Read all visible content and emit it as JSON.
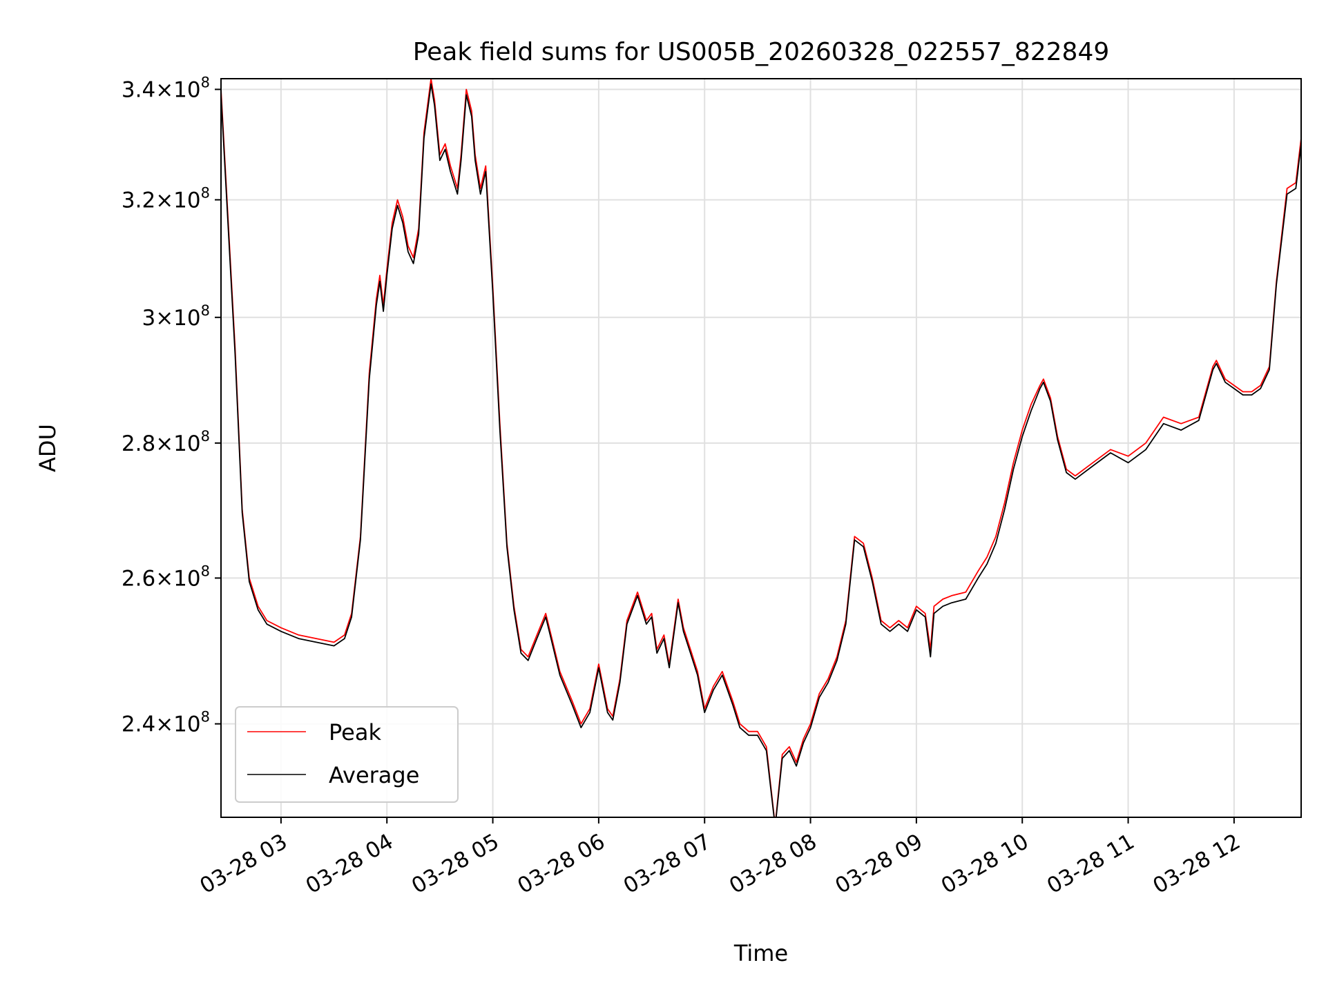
{
  "chart_data": {
    "type": "line",
    "title": "Peak field sums for US005B_20260328_022557_822849",
    "xlabel": "Time",
    "ylabel": "ADU",
    "x_type": "datetime",
    "xlim": [
      "2026-03-28 02:26",
      "2026-03-28 12:38"
    ],
    "ylim": [
      228000000,
      342000000
    ],
    "y_scale": "log",
    "grid": true,
    "legend": "lower left",
    "x_ticks": [
      {
        "value": "2026-03-28 03:00",
        "label": "03-28 03"
      },
      {
        "value": "2026-03-28 04:00",
        "label": "03-28 04"
      },
      {
        "value": "2026-03-28 05:00",
        "label": "03-28 05"
      },
      {
        "value": "2026-03-28 06:00",
        "label": "03-28 06"
      },
      {
        "value": "2026-03-28 07:00",
        "label": "03-28 07"
      },
      {
        "value": "2026-03-28 08:00",
        "label": "03-28 08"
      },
      {
        "value": "2026-03-28 09:00",
        "label": "03-28 09"
      },
      {
        "value": "2026-03-28 10:00",
        "label": "03-28 10"
      },
      {
        "value": "2026-03-28 11:00",
        "label": "03-28 11"
      },
      {
        "value": "2026-03-28 12:00",
        "label": "03-28 12"
      }
    ],
    "y_ticks": [
      {
        "value": 240000000,
        "mantissa": "2.4"
      },
      {
        "value": 260000000,
        "mantissa": "2.6"
      },
      {
        "value": 280000000,
        "mantissa": "2.8"
      },
      {
        "value": 300000000,
        "mantissa": "3"
      },
      {
        "value": 320000000,
        "mantissa": "3.2"
      },
      {
        "value": 340000000,
        "mantissa": "3.4"
      }
    ],
    "y_tick_base": "10",
    "y_tick_exponent": "8",
    "series": [
      {
        "name": "Peak",
        "color": "#ff0000",
        "x": [
          "2026-03-28 02:26",
          "2026-03-28 02:34",
          "2026-03-28 02:38",
          "2026-03-28 02:42",
          "2026-03-28 02:47",
          "2026-03-28 02:52",
          "2026-03-28 03:00",
          "2026-03-28 03:10",
          "2026-03-28 03:20",
          "2026-03-28 03:30",
          "2026-03-28 03:36",
          "2026-03-28 03:40",
          "2026-03-28 03:45",
          "2026-03-28 03:50",
          "2026-03-28 03:54",
          "2026-03-28 03:56",
          "2026-03-28 03:58",
          "2026-03-28 04:00",
          "2026-03-28 04:03",
          "2026-03-28 04:06",
          "2026-03-28 04:09",
          "2026-03-28 04:12",
          "2026-03-28 04:15",
          "2026-03-28 04:18",
          "2026-03-28 04:21",
          "2026-03-28 04:25",
          "2026-03-28 04:27",
          "2026-03-28 04:30",
          "2026-03-28 04:33",
          "2026-03-28 04:36",
          "2026-03-28 04:40",
          "2026-03-28 04:42",
          "2026-03-28 04:45",
          "2026-03-28 04:48",
          "2026-03-28 04:50",
          "2026-03-28 04:53",
          "2026-03-28 04:56",
          "2026-03-28 05:00",
          "2026-03-28 05:04",
          "2026-03-28 05:08",
          "2026-03-28 05:12",
          "2026-03-28 05:16",
          "2026-03-28 05:20",
          "2026-03-28 05:25",
          "2026-03-28 05:30",
          "2026-03-28 05:33",
          "2026-03-28 05:38",
          "2026-03-28 05:45",
          "2026-03-28 05:50",
          "2026-03-28 05:55",
          "2026-03-28 06:00",
          "2026-03-28 06:05",
          "2026-03-28 06:08",
          "2026-03-28 06:12",
          "2026-03-28 06:16",
          "2026-03-28 06:22",
          "2026-03-28 06:27",
          "2026-03-28 06:30",
          "2026-03-28 06:33",
          "2026-03-28 06:37",
          "2026-03-28 06:40",
          "2026-03-28 06:45",
          "2026-03-28 06:48",
          "2026-03-28 06:52",
          "2026-03-28 06:56",
          "2026-03-28 07:00",
          "2026-03-28 07:05",
          "2026-03-28 07:10",
          "2026-03-28 07:16",
          "2026-03-28 07:20",
          "2026-03-28 07:25",
          "2026-03-28 07:30",
          "2026-03-28 07:35",
          "2026-03-28 07:40",
          "2026-03-28 07:44",
          "2026-03-28 07:48",
          "2026-03-28 07:52",
          "2026-03-28 07:56",
          "2026-03-28 08:00",
          "2026-03-28 08:05",
          "2026-03-28 08:10",
          "2026-03-28 08:15",
          "2026-03-28 08:20",
          "2026-03-28 08:25",
          "2026-03-28 08:30",
          "2026-03-28 08:35",
          "2026-03-28 08:40",
          "2026-03-28 08:45",
          "2026-03-28 08:50",
          "2026-03-28 08:55",
          "2026-03-28 09:00",
          "2026-03-28 09:05",
          "2026-03-28 09:08",
          "2026-03-28 09:10",
          "2026-03-28 09:15",
          "2026-03-28 09:20",
          "2026-03-28 09:28",
          "2026-03-28 09:35",
          "2026-03-28 09:40",
          "2026-03-28 09:45",
          "2026-03-28 09:50",
          "2026-03-28 09:55",
          "2026-03-28 10:00",
          "2026-03-28 10:05",
          "2026-03-28 10:10",
          "2026-03-28 10:12",
          "2026-03-28 10:16",
          "2026-03-28 10:20",
          "2026-03-28 10:25",
          "2026-03-28 10:30",
          "2026-03-28 10:40",
          "2026-03-28 10:50",
          "2026-03-28 11:00",
          "2026-03-28 11:10",
          "2026-03-28 11:20",
          "2026-03-28 11:30",
          "2026-03-28 11:40",
          "2026-03-28 11:48",
          "2026-03-28 11:50",
          "2026-03-28 11:55",
          "2026-03-28 12:00",
          "2026-03-28 12:05",
          "2026-03-28 12:10",
          "2026-03-28 12:15",
          "2026-03-28 12:20",
          "2026-03-28 12:24",
          "2026-03-28 12:30",
          "2026-03-28 12:35",
          "2026-03-28 12:38"
        ],
        "values": [
          340000000,
          295000000,
          270000000,
          260000000,
          256000000,
          254000000,
          253000000,
          252000000,
          251500000,
          251000000,
          252000000,
          255000000,
          266000000,
          291000000,
          303000000,
          307000000,
          302000000,
          308000000,
          316000000,
          320000000,
          317000000,
          312000000,
          310000000,
          315000000,
          332000000,
          342000000,
          338000000,
          328000000,
          330000000,
          326000000,
          322000000,
          328000000,
          340000000,
          336000000,
          328000000,
          322000000,
          326000000,
          305000000,
          283000000,
          265000000,
          256000000,
          250000000,
          249000000,
          252000000,
          255000000,
          252000000,
          247000000,
          243000000,
          240000000,
          242000000,
          248000000,
          242000000,
          241000000,
          246000000,
          254000000,
          258000000,
          254000000,
          255000000,
          250000000,
          252000000,
          248000000,
          257000000,
          253000000,
          250000000,
          247000000,
          242000000,
          245000000,
          247000000,
          243000000,
          240000000,
          239000000,
          239000000,
          237000000,
          227000000,
          236000000,
          237000000,
          235000000,
          238000000,
          240000000,
          244000000,
          246000000,
          249000000,
          254000000,
          266000000,
          265000000,
          260000000,
          254000000,
          253000000,
          254000000,
          253000000,
          256000000,
          255000000,
          250000000,
          256000000,
          257000000,
          257500000,
          258000000,
          261000000,
          263000000,
          266000000,
          271000000,
          277000000,
          282000000,
          286000000,
          289000000,
          290000000,
          287000000,
          281000000,
          276000000,
          275000000,
          277000000,
          279000000,
          278000000,
          280000000,
          284000000,
          283000000,
          284000000,
          292000000,
          293000000,
          290000000,
          289000000,
          288000000,
          288000000,
          289000000,
          292000000,
          306000000,
          322000000,
          323000000,
          331000000
        ]
      },
      {
        "name": "Average",
        "color": "#000000",
        "x": [
          "2026-03-28 02:26",
          "2026-03-28 02:34",
          "2026-03-28 02:38",
          "2026-03-28 02:42",
          "2026-03-28 02:47",
          "2026-03-28 02:52",
          "2026-03-28 03:00",
          "2026-03-28 03:10",
          "2026-03-28 03:20",
          "2026-03-28 03:30",
          "2026-03-28 03:36",
          "2026-03-28 03:40",
          "2026-03-28 03:45",
          "2026-03-28 03:50",
          "2026-03-28 03:54",
          "2026-03-28 03:56",
          "2026-03-28 03:58",
          "2026-03-28 04:00",
          "2026-03-28 04:03",
          "2026-03-28 04:06",
          "2026-03-28 04:09",
          "2026-03-28 04:12",
          "2026-03-28 04:15",
          "2026-03-28 04:18",
          "2026-03-28 04:21",
          "2026-03-28 04:25",
          "2026-03-28 04:27",
          "2026-03-28 04:30",
          "2026-03-28 04:33",
          "2026-03-28 04:36",
          "2026-03-28 04:40",
          "2026-03-28 04:42",
          "2026-03-28 04:45",
          "2026-03-28 04:48",
          "2026-03-28 04:50",
          "2026-03-28 04:53",
          "2026-03-28 04:56",
          "2026-03-28 05:00",
          "2026-03-28 05:04",
          "2026-03-28 05:08",
          "2026-03-28 05:12",
          "2026-03-28 05:16",
          "2026-03-28 05:20",
          "2026-03-28 05:25",
          "2026-03-28 05:30",
          "2026-03-28 05:33",
          "2026-03-28 05:38",
          "2026-03-28 05:45",
          "2026-03-28 05:50",
          "2026-03-28 05:55",
          "2026-03-28 06:00",
          "2026-03-28 06:05",
          "2026-03-28 06:08",
          "2026-03-28 06:12",
          "2026-03-28 06:16",
          "2026-03-28 06:22",
          "2026-03-28 06:27",
          "2026-03-28 06:30",
          "2026-03-28 06:33",
          "2026-03-28 06:37",
          "2026-03-28 06:40",
          "2026-03-28 06:45",
          "2026-03-28 06:48",
          "2026-03-28 06:52",
          "2026-03-28 06:56",
          "2026-03-28 07:00",
          "2026-03-28 07:05",
          "2026-03-28 07:10",
          "2026-03-28 07:16",
          "2026-03-28 07:20",
          "2026-03-28 07:25",
          "2026-03-28 07:30",
          "2026-03-28 07:35",
          "2026-03-28 07:40",
          "2026-03-28 07:44",
          "2026-03-28 07:48",
          "2026-03-28 07:52",
          "2026-03-28 07:56",
          "2026-03-28 08:00",
          "2026-03-28 08:05",
          "2026-03-28 08:10",
          "2026-03-28 08:15",
          "2026-03-28 08:20",
          "2026-03-28 08:25",
          "2026-03-28 08:30",
          "2026-03-28 08:35",
          "2026-03-28 08:40",
          "2026-03-28 08:45",
          "2026-03-28 08:50",
          "2026-03-28 08:55",
          "2026-03-28 09:00",
          "2026-03-28 09:05",
          "2026-03-28 09:08",
          "2026-03-28 09:10",
          "2026-03-28 09:15",
          "2026-03-28 09:20",
          "2026-03-28 09:28",
          "2026-03-28 09:35",
          "2026-03-28 09:40",
          "2026-03-28 09:45",
          "2026-03-28 09:50",
          "2026-03-28 09:55",
          "2026-03-28 10:00",
          "2026-03-28 10:05",
          "2026-03-28 10:10",
          "2026-03-28 10:12",
          "2026-03-28 10:16",
          "2026-03-28 10:20",
          "2026-03-28 10:25",
          "2026-03-28 10:30",
          "2026-03-28 10:40",
          "2026-03-28 10:50",
          "2026-03-28 11:00",
          "2026-03-28 11:10",
          "2026-03-28 11:20",
          "2026-03-28 11:30",
          "2026-03-28 11:40",
          "2026-03-28 11:48",
          "2026-03-28 11:50",
          "2026-03-28 11:55",
          "2026-03-28 12:00",
          "2026-03-28 12:05",
          "2026-03-28 12:10",
          "2026-03-28 12:15",
          "2026-03-28 12:20",
          "2026-03-28 12:24",
          "2026-03-28 12:30",
          "2026-03-28 12:35",
          "2026-03-28 12:38"
        ],
        "values": [
          339000000,
          294000000,
          269500000,
          259500000,
          255500000,
          253500000,
          252500000,
          251500000,
          251000000,
          250500000,
          251500000,
          254500000,
          265500000,
          290000000,
          302000000,
          306000000,
          301000000,
          307000000,
          315000000,
          319000000,
          316000000,
          311000000,
          309000000,
          314000000,
          331000000,
          341000000,
          337000000,
          327000000,
          329000000,
          325000000,
          321000000,
          327000000,
          339000000,
          335000000,
          327000000,
          321000000,
          325000000,
          304000000,
          282000000,
          264500000,
          255500000,
          249500000,
          248500000,
          251500000,
          254500000,
          251500000,
          246500000,
          242500000,
          239500000,
          241500000,
          247500000,
          241500000,
          240500000,
          245500000,
          253500000,
          257500000,
          253500000,
          254500000,
          249500000,
          251500000,
          247500000,
          256500000,
          252500000,
          249500000,
          246500000,
          241500000,
          244500000,
          246500000,
          242500000,
          239500000,
          238500000,
          238500000,
          236500000,
          226800000,
          235500000,
          236500000,
          234500000,
          237500000,
          239500000,
          243500000,
          245500000,
          248500000,
          253500000,
          265500000,
          264500000,
          259500000,
          253500000,
          252500000,
          253500000,
          252500000,
          255500000,
          254500000,
          249000000,
          255000000,
          256000000,
          256500000,
          257000000,
          260000000,
          262000000,
          265000000,
          270000000,
          276000000,
          281000000,
          285000000,
          288500000,
          289500000,
          286500000,
          280500000,
          275500000,
          274500000,
          276500000,
          278500000,
          277000000,
          279000000,
          283000000,
          282000000,
          283500000,
          291500000,
          292500000,
          289500000,
          288500000,
          287500000,
          287500000,
          288500000,
          291500000,
          305500000,
          321000000,
          322000000,
          330000000
        ]
      }
    ]
  }
}
